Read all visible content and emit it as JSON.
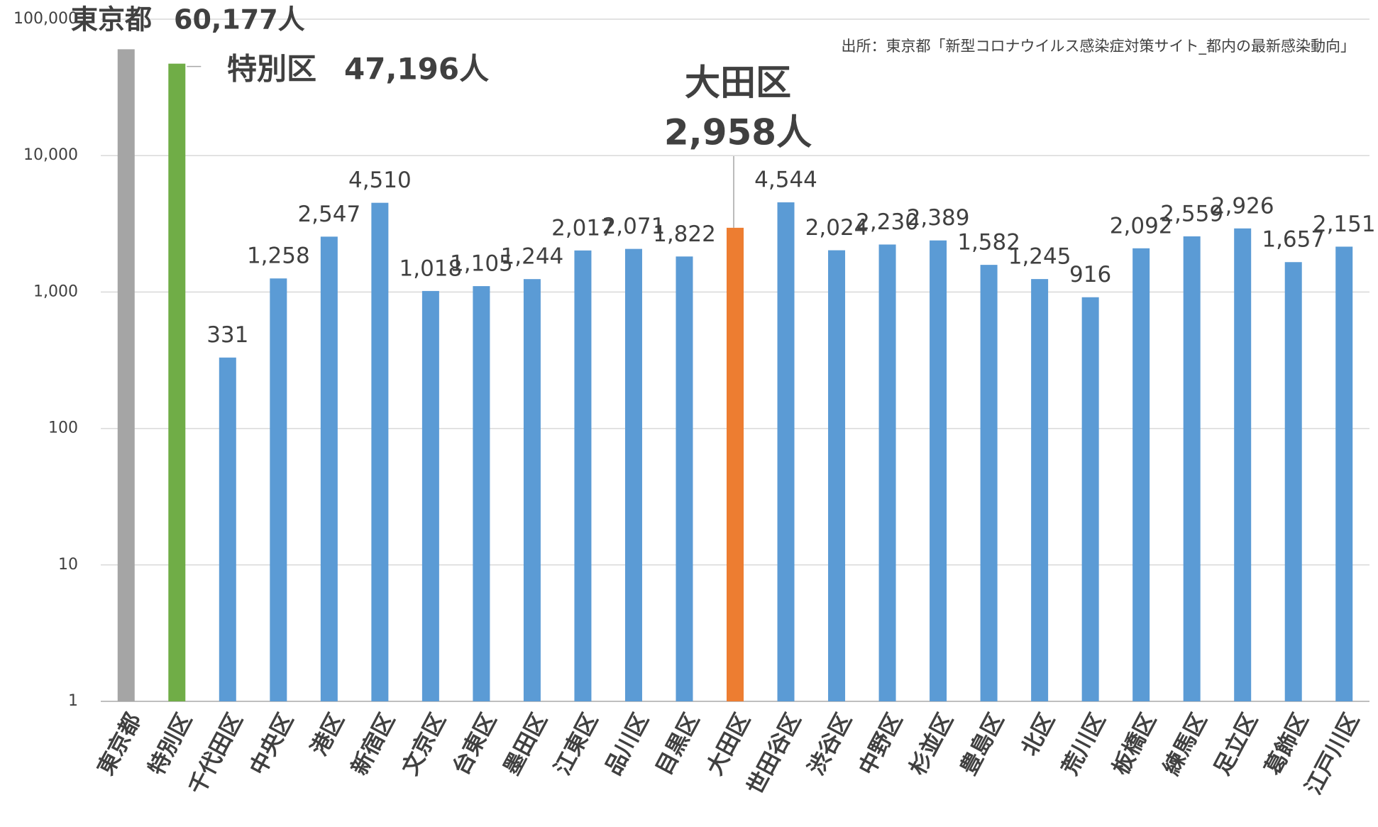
{
  "chart_data": {
    "type": "bar",
    "source": "出所：東京都「新型コロナウイルス感染症対策サイト_都内の最新感染動向」",
    "categories": [
      "東京都",
      "特別区",
      "千代田区",
      "中央区",
      "港区",
      "新宿区",
      "文京区",
      "台東区",
      "墨田区",
      "江東区",
      "品川区",
      "目黒区",
      "大田区",
      "世田谷区",
      "渋谷区",
      "中野区",
      "杉並区",
      "豊島区",
      "北区",
      "荒川区",
      "板橋区",
      "練馬区",
      "足立区",
      "葛飾区",
      "江戸川区"
    ],
    "values": [
      60177,
      47196,
      331,
      1258,
      2547,
      4510,
      1018,
      1105,
      1244,
      2017,
      2071,
      1822,
      2958,
      4544,
      2024,
      2230,
      2389,
      1582,
      1245,
      916,
      2092,
      2559,
      2926,
      1657,
      2151
    ],
    "value_labels": [
      "60,177人",
      "47,196人",
      "331",
      "1,258",
      "2,547",
      "4,510",
      "1,018",
      "1,105",
      "1,244",
      "2,017",
      "2,071",
      "1,822",
      "2,958人",
      "4,544",
      "2,024",
      "2,230",
      "2,389",
      "1,582",
      "1,245",
      "916",
      "2,092",
      "2,559",
      "2,926",
      "1,657",
      "2,151"
    ],
    "colors": [
      "#a5a5a5",
      "#70ad47",
      "#5b9bd5",
      "#5b9bd5",
      "#5b9bd5",
      "#5b9bd5",
      "#5b9bd5",
      "#5b9bd5",
      "#5b9bd5",
      "#5b9bd5",
      "#5b9bd5",
      "#5b9bd5",
      "#ed7d31",
      "#5b9bd5",
      "#5b9bd5",
      "#5b9bd5",
      "#5b9bd5",
      "#5b9bd5",
      "#5b9bd5",
      "#5b9bd5",
      "#5b9bd5",
      "#5b9bd5",
      "#5b9bd5",
      "#5b9bd5",
      "#5b9bd5"
    ],
    "log_scale": true,
    "ylim": [
      1,
      100000
    ],
    "yticks": [
      1,
      10,
      100,
      {
        "value": 1000,
        "label": "1,000"
      },
      {
        "value": 10000,
        "label": "10,000"
      },
      {
        "value": 100000,
        "label": "100,000"
      }
    ],
    "grid": true
  }
}
